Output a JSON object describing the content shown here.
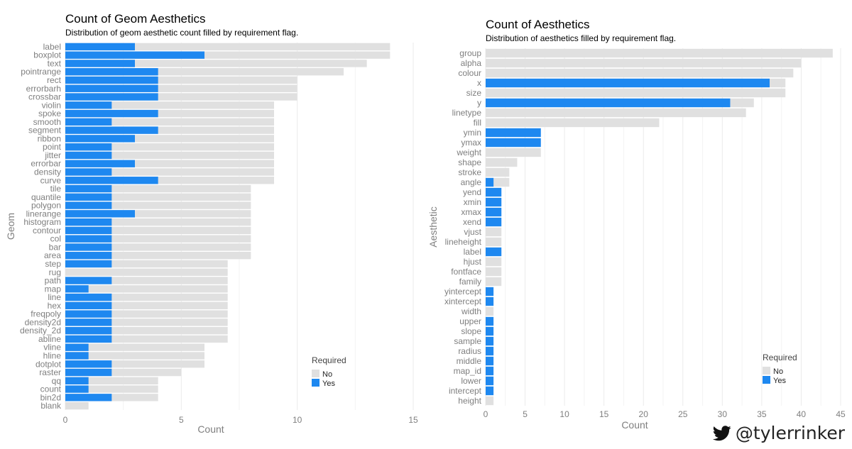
{
  "colors": {
    "no": "#e0e0e0",
    "yes": "#1e88f0",
    "grid": "#ebebeb"
  },
  "chart_data": [
    {
      "type": "bar",
      "orientation": "horizontal",
      "stacked": false,
      "title": "Count of Geom Aesthetics",
      "subtitle": "Distribution of geom aesthetic count filled by requirement flag.",
      "xlabel": "Count",
      "ylabel": "Geom",
      "xlim": [
        0,
        15
      ],
      "xticks": [
        0,
        5,
        10,
        15
      ],
      "legend": {
        "title": "Required",
        "entries": [
          "No",
          "Yes"
        ],
        "position": "bottom-right"
      },
      "categories": [
        "label",
        "boxplot",
        "text",
        "pointrange",
        "rect",
        "errorbarh",
        "crossbar",
        "violin",
        "spoke",
        "smooth",
        "segment",
        "ribbon",
        "point",
        "jitter",
        "errorbar",
        "density",
        "curve",
        "tile",
        "quantile",
        "polygon",
        "linerange",
        "histogram",
        "contour",
        "col",
        "bar",
        "area",
        "step",
        "rug",
        "path",
        "map",
        "line",
        "hex",
        "freqpoly",
        "density2d",
        "density_2d",
        "abline",
        "vline",
        "hline",
        "dotplot",
        "raster",
        "qq",
        "count",
        "bin2d",
        "blank"
      ],
      "series": [
        {
          "name": "No",
          "values": [
            14,
            14,
            13,
            12,
            10,
            10,
            10,
            9,
            9,
            9,
            9,
            9,
            9,
            9,
            9,
            9,
            9,
            8,
            8,
            8,
            8,
            8,
            8,
            8,
            8,
            8,
            7,
            7,
            7,
            7,
            7,
            7,
            7,
            7,
            7,
            7,
            6,
            6,
            6,
            5,
            4,
            4,
            4,
            1
          ]
        },
        {
          "name": "Yes",
          "values": [
            3,
            6,
            3,
            4,
            4,
            4,
            4,
            2,
            4,
            2,
            4,
            3,
            2,
            2,
            3,
            2,
            4,
            2,
            2,
            2,
            3,
            2,
            2,
            2,
            2,
            2,
            2,
            0,
            2,
            1,
            2,
            2,
            2,
            2,
            2,
            2,
            1,
            1,
            2,
            2,
            1,
            1,
            2,
            0
          ]
        }
      ]
    },
    {
      "type": "bar",
      "orientation": "horizontal",
      "stacked": false,
      "title": "Count of Aesthetics",
      "subtitle": "Distribution of aesthetics filled by requirement flag.",
      "xlabel": "Count",
      "ylabel": "Aesthetic",
      "xlim": [
        0,
        45
      ],
      "xticks": [
        0,
        5,
        10,
        15,
        20,
        25,
        30,
        35,
        40,
        45
      ],
      "legend": {
        "title": "Required",
        "entries": [
          "No",
          "Yes"
        ],
        "position": "bottom-right"
      },
      "categories": [
        "group",
        "alpha",
        "colour",
        "x",
        "size",
        "y",
        "linetype",
        "fill",
        "ymin",
        "ymax",
        "weight",
        "shape",
        "stroke",
        "angle",
        "yend",
        "xmin",
        "xmax",
        "xend",
        "vjust",
        "lineheight",
        "label",
        "hjust",
        "fontface",
        "family",
        "yintercept",
        "xintercept",
        "width",
        "upper",
        "slope",
        "sample",
        "radius",
        "middle",
        "map_id",
        "lower",
        "intercept",
        "height"
      ],
      "series": [
        {
          "name": "No",
          "values": [
            44,
            40,
            39,
            38,
            38,
            34,
            33,
            22,
            0,
            0,
            7,
            4,
            3,
            3,
            0,
            0,
            0,
            0,
            2,
            2,
            0,
            2,
            2,
            2,
            0,
            0,
            1,
            0,
            0,
            0,
            0,
            0,
            0,
            0,
            0,
            1
          ]
        },
        {
          "name": "Yes",
          "values": [
            0,
            0,
            0,
            36,
            0,
            31,
            0,
            0,
            7,
            7,
            0,
            0,
            0,
            1,
            2,
            2,
            2,
            2,
            0,
            0,
            2,
            0,
            0,
            0,
            1,
            1,
            0,
            1,
            1,
            1,
            1,
            1,
            1,
            1,
            1,
            0
          ]
        }
      ]
    }
  ],
  "footer": {
    "handle": "@tylerrinker"
  }
}
